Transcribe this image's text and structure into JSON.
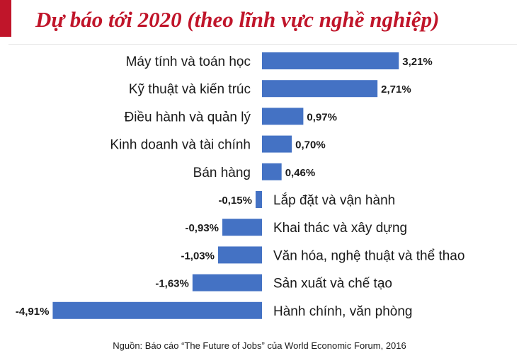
{
  "title": "Dự báo tới 2020 (theo lĩnh vực nghề nghiệp)",
  "source": "Nguồn: Báo cáo “The Future of Jobs” của World Economic Forum, 2016",
  "colors": {
    "bar": "#4472c4",
    "title": "#c0152a",
    "accent_block": "#c0152a"
  },
  "chart_data": {
    "type": "bar",
    "orientation": "horizontal",
    "categories": [
      "Máy tính và toán học",
      "Kỹ thuật và kiến trúc",
      "Điều hành và quản lý",
      "Kinh doanh và tài chính",
      "Bán hàng",
      "Lắp đặt và vận hành",
      "Khai thác và xây dựng",
      "Văn hóa, nghệ thuật và thể thao",
      "Sản xuất và chế tạo",
      "Hành chính, văn phòng"
    ],
    "values": [
      3.21,
      2.71,
      0.97,
      0.7,
      0.46,
      -0.15,
      -0.93,
      -1.03,
      -1.63,
      -4.91
    ],
    "data_labels": [
      "3,21%",
      "2,71%",
      "0,97%",
      "0,70%",
      "0,46%",
      "-0,15%",
      "-0,93%",
      "-1,03%",
      "-1,63%",
      "-4,91%"
    ],
    "grid": false
  }
}
